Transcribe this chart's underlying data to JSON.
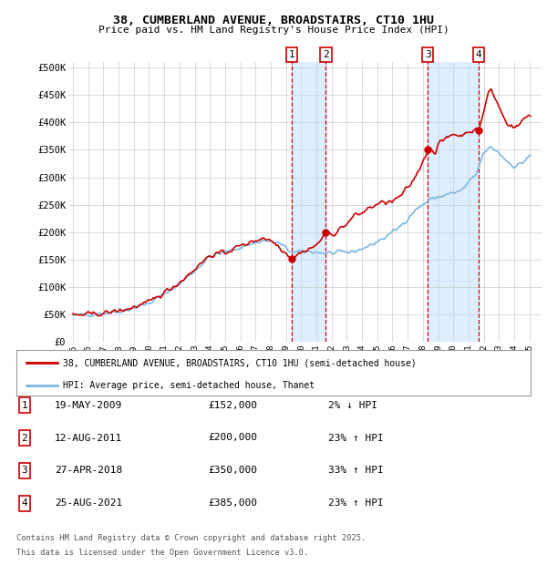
{
  "title": "38, CUMBERLAND AVENUE, BROADSTAIRS, CT10 1HU",
  "subtitle": "Price paid vs. HM Land Registry's House Price Index (HPI)",
  "legend_line1": "38, CUMBERLAND AVENUE, BROADSTAIRS, CT10 1HU (semi-detached house)",
  "legend_line2": "HPI: Average price, semi-detached house, Thanet",
  "footer1": "Contains HM Land Registry data © Crown copyright and database right 2025.",
  "footer2": "This data is licensed under the Open Government Licence v3.0.",
  "sale_labels": [
    {
      "num": "1",
      "date": "19-MAY-2009",
      "price": "£152,000",
      "pct": "2% ↓ HPI"
    },
    {
      "num": "2",
      "date": "12-AUG-2011",
      "price": "£200,000",
      "pct": "23% ↑ HPI"
    },
    {
      "num": "3",
      "date": "27-APR-2018",
      "price": "£350,000",
      "pct": "33% ↑ HPI"
    },
    {
      "num": "4",
      "date": "25-AUG-2021",
      "price": "£385,000",
      "pct": "23% ↑ HPI"
    }
  ],
  "sale_years": [
    2009.38,
    2011.62,
    2018.32,
    2021.65
  ],
  "sale_prices": [
    152000,
    200000,
    350000,
    385000
  ],
  "hpi_color": "#7ab8e0",
  "price_color": "#cc0000",
  "shade_color": "#ddeeff",
  "vline_color": "#cc0000",
  "ytick_labels": [
    "£0",
    "£50K",
    "£100K",
    "£150K",
    "£200K",
    "£250K",
    "£300K",
    "£350K",
    "£400K",
    "£450K",
    "£500K"
  ],
  "yticks": [
    0,
    50000,
    100000,
    150000,
    200000,
    250000,
    300000,
    350000,
    400000,
    450000,
    500000
  ],
  "xmin": 1994.7,
  "xmax": 2025.8,
  "ymin": 0,
  "ymax": 510000,
  "background_color": "#ffffff",
  "grid_color": "#cccccc"
}
